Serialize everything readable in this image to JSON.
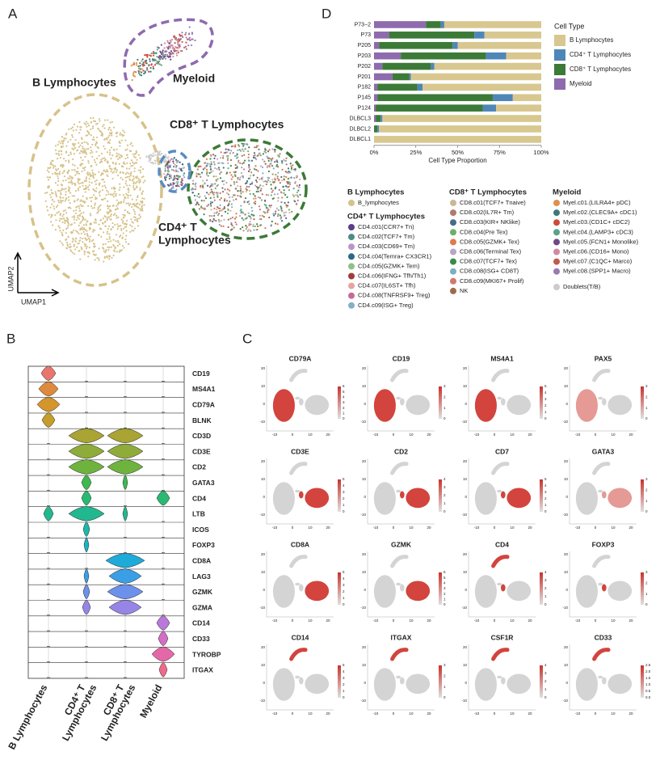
{
  "panel_labels": [
    "A",
    "B",
    "C",
    "D"
  ],
  "umap": {
    "labels": {
      "b": "B Lymphocytes",
      "myeloid": "Myeloid",
      "cd8": "CD8⁺ T Lymphocytes",
      "cd4": [
        "CD4⁺ T",
        "Lymphocytes"
      ]
    },
    "x_label": "UMAP1",
    "y_label": "UMAP2"
  },
  "clusters": {
    "groups": [
      {
        "title": "B Lymphocytes",
        "color": "#d6c28a",
        "items": [
          {
            "label": "B_lymphocytes",
            "color": "#d6c28a"
          }
        ]
      },
      {
        "title": "CD4⁺ T Lymphocytes",
        "color": "#5a8cc0",
        "items": [
          {
            "label": "CD4.c01(CCR7+ Tn)",
            "color": "#5a3f8a"
          },
          {
            "label": "CD4.c02(TCF7+ Tm)",
            "color": "#4d8c86"
          },
          {
            "label": "CD4.c03(CD69+ Tm)",
            "color": "#b896c9"
          },
          {
            "label": "CD4.c04(Temra+ CX3CR1)",
            "color": "#2c6a84"
          },
          {
            "label": "CD4.c05(GZMK+ Tem)",
            "color": "#8fc08a"
          },
          {
            "label": "CD4.c06(IFNG+ Tfh/Th1)",
            "color": "#a23b3b"
          },
          {
            "label": "CD4.c07(IL6ST+ Tfh)",
            "color": "#e8a2a2"
          },
          {
            "label": "CD4.c08(TNFRSF9+ Treg)",
            "color": "#c56b9c"
          },
          {
            "label": "CD4.c09(ISG+ Treg)",
            "color": "#85b0c9"
          }
        ]
      },
      {
        "title": "CD8⁺ T Lymphocytes",
        "color": "#3c7a37",
        "items": [
          {
            "label": "CD8.c01(TCF7+ Tnaive)",
            "color": "#c8b89a"
          },
          {
            "label": "CD8.c02(IL7R+ Tm)",
            "color": "#b07a6a"
          },
          {
            "label": "CD8.c03(KIR+ NKlike)",
            "color": "#4a6a8a"
          },
          {
            "label": "CD8.c04(Pre Tex)",
            "color": "#6ab06a"
          },
          {
            "label": "CD8.c05(GZMK+ Tex)",
            "color": "#e07a50"
          },
          {
            "label": "CD8.c06(Terminal Tex)",
            "color": "#b8a4c9"
          },
          {
            "label": "CD8.c07(TCF7+ Tex)",
            "color": "#3a8a4a"
          },
          {
            "label": "CD8.c08(ISG+ CD8T)",
            "color": "#7ab0c0"
          },
          {
            "label": "CD8.c09(MKI67+ Prolif)",
            "color": "#d07a6a"
          },
          {
            "label": "NK",
            "color": "#a06a4a"
          }
        ]
      },
      {
        "title": "Myeloid",
        "color": "#8e6aae",
        "items": [
          {
            "label": "Myel.c01.(LILRA4+ pDC)",
            "color": "#e0904a"
          },
          {
            "label": "Myel.c02.(CLEC9A+ cDC1)",
            "color": "#3a7a7a"
          },
          {
            "label": "Myel.c03.(CD1C+ cDC2)",
            "color": "#d04a3a"
          },
          {
            "label": "Myel.c04.(LAMP3+ cDC3)",
            "color": "#5aa08a"
          },
          {
            "label": "Myel.c05.(FCN1+ Monolike)",
            "color": "#6a4a8a"
          },
          {
            "label": "Myel.c06.(CD16+ Mono)",
            "color": "#d08aa0"
          },
          {
            "label": "Myel.c07.(C1QC+ Marco)",
            "color": "#c05a4a"
          },
          {
            "label": "Myel.c08.(SPP1+ Macro)",
            "color": "#9a7ab0"
          }
        ]
      }
    ],
    "doublets": {
      "label": "Doublets(T/B)",
      "color": "#cccccc"
    }
  },
  "violin": {
    "genes": [
      "CD19",
      "MS4A1",
      "CD79A",
      "BLNK",
      "CD3D",
      "CD3E",
      "CD2",
      "GATA3",
      "CD4",
      "LTB",
      "ICOS",
      "FOXP3",
      "CD8A",
      "LAG3",
      "GZMK",
      "GZMA",
      "CD14",
      "CD33",
      "TYROBP",
      "ITGAX"
    ],
    "groups": [
      [
        "B Lymphocytes"
      ],
      [
        "CD4⁺ T",
        "Lymphocytes"
      ],
      [
        "CD8⁺ T",
        "Lymphocytes"
      ],
      [
        "Myeloid"
      ]
    ]
  },
  "features": {
    "xticks": [
      "-10",
      "0",
      "10",
      "20"
    ],
    "yticks": [
      "20",
      "10",
      "0",
      "-10"
    ],
    "plots": [
      {
        "gene": "CD79A",
        "scale": [
          "6",
          "5",
          "4",
          "3",
          "2",
          "1",
          "0"
        ]
      },
      {
        "gene": "CD19",
        "scale": [
          "3",
          "2",
          "1",
          "0"
        ]
      },
      {
        "gene": "MS4A1",
        "scale": [
          "5",
          "4",
          "3",
          "2",
          "1",
          "0"
        ]
      },
      {
        "gene": "PAX5",
        "scale": [
          "3",
          "2",
          "1",
          "0"
        ]
      },
      {
        "gene": "CD3E",
        "scale": [
          "5",
          "4",
          "3",
          "2",
          "1",
          "0"
        ]
      },
      {
        "gene": "CD2",
        "scale": [
          "4",
          "3",
          "2",
          "1",
          "0"
        ]
      },
      {
        "gene": "CD7",
        "scale": [
          "5",
          "4",
          "3",
          "2",
          "1",
          "0"
        ]
      },
      {
        "gene": "GATA3",
        "scale": [
          "3",
          "2",
          "1",
          "0"
        ]
      },
      {
        "gene": "CD8A",
        "scale": [
          "5",
          "4",
          "3",
          "2",
          "1",
          "0"
        ]
      },
      {
        "gene": "GZMK",
        "scale": [
          "6",
          "5",
          "4",
          "3",
          "2",
          "1",
          "0"
        ]
      },
      {
        "gene": "CD4",
        "scale": [
          "4",
          "3",
          "2",
          "1",
          "0"
        ]
      },
      {
        "gene": "FOXP3",
        "scale": [
          "3",
          "2",
          "1",
          "0"
        ]
      },
      {
        "gene": "CD14",
        "scale": [
          "5",
          "4",
          "3",
          "2",
          "1",
          "0"
        ]
      },
      {
        "gene": "ITGAX",
        "scale": [
          "3",
          "2",
          "1",
          "0"
        ]
      },
      {
        "gene": "CSF1R",
        "scale": [
          "4",
          "3",
          "2",
          "1",
          "0"
        ]
      },
      {
        "gene": "CD33",
        "scale": [
          "2.5",
          "2.0",
          "1.5",
          "1.0",
          "0.5",
          "0.0"
        ]
      }
    ]
  },
  "chart_data": {
    "type": "bar",
    "orientation": "horizontal",
    "stacked": true,
    "categories": [
      "P73−2",
      "P73",
      "P205",
      "P203",
      "P202",
      "P201",
      "P182",
      "P145",
      "P124",
      "DLBCL3",
      "DLBCL2",
      "DLBCL1"
    ],
    "series": [
      {
        "name": "B Lymphocytes",
        "color": "#d8c78f",
        "values": [
          58,
          34,
          50,
          21,
          64,
          78,
          71,
          17,
          27,
          95,
          97,
          100
        ]
      },
      {
        "name": "CD4⁺ T Lymphocytes",
        "color": "#4f86b8",
        "values": [
          2,
          6,
          3,
          12,
          2,
          1,
          3,
          12,
          8,
          1,
          1,
          0
        ]
      },
      {
        "name": "CD8⁺ T Lymphocytes",
        "color": "#3c7a37",
        "values": [
          9,
          51,
          44,
          51,
          29,
          10,
          24,
          69,
          64,
          3,
          2,
          0
        ]
      },
      {
        "name": "Myeloid",
        "color": "#8e6aae",
        "values": [
          31,
          9,
          3,
          16,
          5,
          11,
          2,
          2,
          1,
          1,
          0,
          0
        ]
      }
    ],
    "xlim": [
      0,
      100
    ],
    "xticks": [
      {
        "value": 0,
        "label": "0%"
      },
      {
        "value": 25,
        "label": "25%"
      },
      {
        "value": 50,
        "label": "50%"
      },
      {
        "value": 75,
        "label": "75%"
      },
      {
        "value": 100,
        "label": "100%"
      }
    ],
    "x_label": "Cell Type Proportion",
    "legend_title": "Cell Type",
    "legend": "right"
  }
}
